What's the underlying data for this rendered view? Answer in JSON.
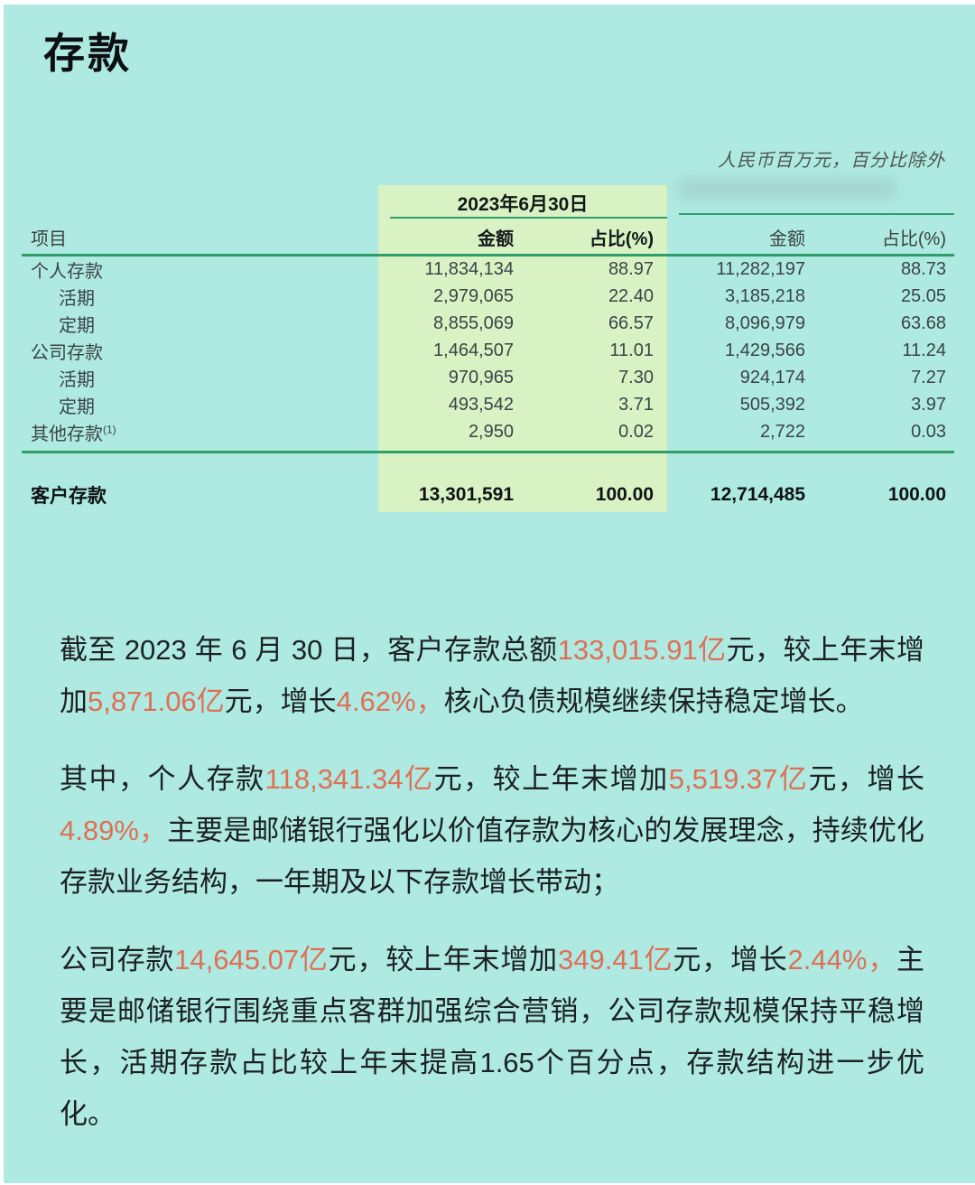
{
  "page": {
    "title": "存款",
    "unit_note": "人民币百万元，百分比除外"
  },
  "table": {
    "period_header": "2023年6月30日",
    "item_header": "项目",
    "col_headers_2023": {
      "amount": "金额",
      "pct": "占比(%)"
    },
    "col_headers_prev": {
      "amount": "金额",
      "pct": "占比(%)"
    },
    "rows": [
      {
        "label": "个人存款",
        "indent": false,
        "footnote": "",
        "amount_2023": "11,834,134",
        "pct_2023": "88.97",
        "amount_prev": "11,282,197",
        "pct_prev": "88.73"
      },
      {
        "label": "活期",
        "indent": true,
        "footnote": "",
        "amount_2023": "2,979,065",
        "pct_2023": "22.40",
        "amount_prev": "3,185,218",
        "pct_prev": "25.05"
      },
      {
        "label": "定期",
        "indent": true,
        "footnote": "",
        "amount_2023": "8,855,069",
        "pct_2023": "66.57",
        "amount_prev": "8,096,979",
        "pct_prev": "63.68"
      },
      {
        "label": "公司存款",
        "indent": false,
        "footnote": "",
        "amount_2023": "1,464,507",
        "pct_2023": "11.01",
        "amount_prev": "1,429,566",
        "pct_prev": "11.24"
      },
      {
        "label": "活期",
        "indent": true,
        "footnote": "",
        "amount_2023": "970,965",
        "pct_2023": "7.30",
        "amount_prev": "924,174",
        "pct_prev": "7.27"
      },
      {
        "label": "定期",
        "indent": true,
        "footnote": "",
        "amount_2023": "493,542",
        "pct_2023": "3.71",
        "amount_prev": "505,392",
        "pct_prev": "3.97"
      },
      {
        "label": "其他存款",
        "indent": false,
        "footnote": "(1)",
        "amount_2023": "2,950",
        "pct_2023": "0.02",
        "amount_prev": "2,722",
        "pct_prev": "0.03"
      }
    ],
    "total_row": {
      "label": "客户存款",
      "amount_2023": "13,301,591",
      "pct_2023": "100.00",
      "amount_prev": "12,714,485",
      "pct_prev": "100.00"
    }
  },
  "paragraphs": [
    {
      "segments": [
        {
          "t": "截至 2023 年 6 月 30 日，客户存款总额",
          "c": "normal"
        },
        {
          "t": "133,015.91亿",
          "c": "accent"
        },
        {
          "t": "元，较上年末增加",
          "c": "normal"
        },
        {
          "t": "5,871.06亿",
          "c": "accent"
        },
        {
          "t": "元，增长",
          "c": "normal"
        },
        {
          "t": "4.62%，",
          "c": "accent"
        },
        {
          "t": "核心负债规模继续保持稳定增长。",
          "c": "normal"
        }
      ]
    },
    {
      "segments": [
        {
          "t": "其中，个人存款",
          "c": "normal"
        },
        {
          "t": "118,341.34亿",
          "c": "accent"
        },
        {
          "t": "元，较上年末增加",
          "c": "normal"
        },
        {
          "t": "5,519.37亿",
          "c": "accent"
        },
        {
          "t": "元，增长",
          "c": "normal"
        },
        {
          "t": "4.89%，",
          "c": "accent"
        },
        {
          "t": "主要是邮储银行强化以价值存款为核心的发展理念，持续优化存款业务结构，一年期及以下存款增长带动；",
          "c": "normal"
        }
      ]
    },
    {
      "segments": [
        {
          "t": "公司存款",
          "c": "normal"
        },
        {
          "t": "14,645.07亿",
          "c": "accent"
        },
        {
          "t": "元，较上年末增加",
          "c": "normal"
        },
        {
          "t": "349.41亿",
          "c": "accent"
        },
        {
          "t": "元，增长",
          "c": "normal"
        },
        {
          "t": "2.44%，",
          "c": "accent"
        },
        {
          "t": "主要是邮储银行围绕重点客群加强综合营销，公司存款规模保持平稳增长，活期存款占比较上年末提高1.65个百分点，存款结构进一步优化。",
          "c": "normal"
        }
      ]
    }
  ],
  "colors": {
    "background": "#aeeae1",
    "highlight_column": "#d9f2c3",
    "rule_green": "#2f9e6b",
    "accent_orange": "#df6f55"
  }
}
